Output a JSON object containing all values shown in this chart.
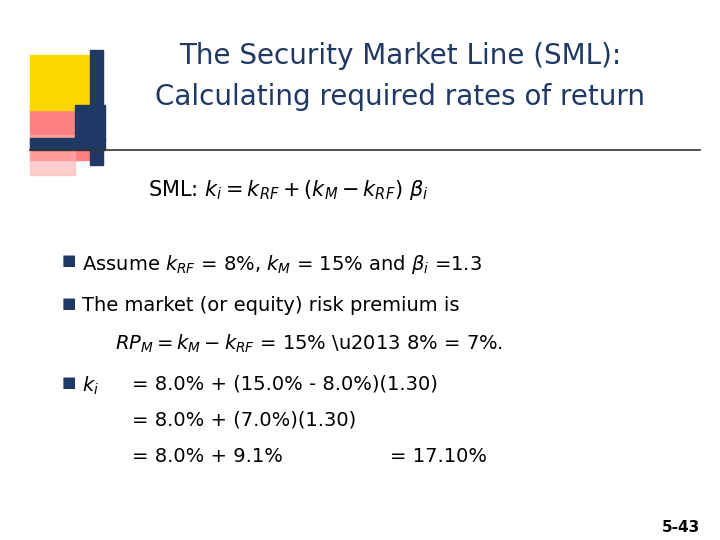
{
  "title_line1": "The Security Market Line (SML):",
  "title_line2": "Calculating required rates of return",
  "title_color": "#1F3864",
  "bg_color": "#FFFFFF",
  "slide_number": "5-43",
  "decoration_gold": "#FFD700",
  "decoration_red": "#FF6666",
  "decoration_blue": "#1F3864",
  "body_color": "#000000",
  "bullet_color": "#1F3864",
  "title_fontsize": 20,
  "body_fontsize": 14,
  "formula_fontsize": 15
}
